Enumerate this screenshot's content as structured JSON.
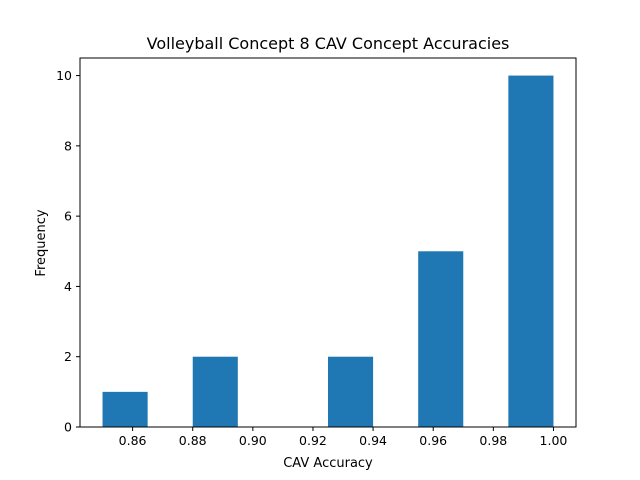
{
  "chart_data": {
    "type": "bar",
    "title": "Volleyball Concept 8 CAV Concept Accuracies",
    "xlabel": "CAV Accuracy",
    "ylabel": "Frequency",
    "xlim": [
      0.8425,
      1.0075
    ],
    "ylim": [
      0,
      10.5
    ],
    "x_ticks": [
      0.86,
      0.88,
      0.9,
      0.92,
      0.94,
      0.96,
      0.98,
      1.0
    ],
    "x_tick_labels": [
      "0.86",
      "0.88",
      "0.90",
      "0.92",
      "0.94",
      "0.96",
      "0.98",
      "1.00"
    ],
    "y_ticks": [
      0,
      2,
      4,
      6,
      8,
      10
    ],
    "y_tick_labels": [
      "0",
      "2",
      "4",
      "6",
      "8",
      "10"
    ],
    "bins": [
      {
        "start": 0.85,
        "end": 0.865,
        "count": 1
      },
      {
        "start": 0.865,
        "end": 0.88,
        "count": 0
      },
      {
        "start": 0.88,
        "end": 0.895,
        "count": 2
      },
      {
        "start": 0.895,
        "end": 0.91,
        "count": 0
      },
      {
        "start": 0.91,
        "end": 0.925,
        "count": 0
      },
      {
        "start": 0.925,
        "end": 0.94,
        "count": 2
      },
      {
        "start": 0.94,
        "end": 0.955,
        "count": 0
      },
      {
        "start": 0.955,
        "end": 0.97,
        "count": 5
      },
      {
        "start": 0.97,
        "end": 0.985,
        "count": 0
      },
      {
        "start": 0.985,
        "end": 1.0,
        "count": 10
      }
    ],
    "bar_color": "#1f77b4",
    "grid": false,
    "legend": "none"
  }
}
